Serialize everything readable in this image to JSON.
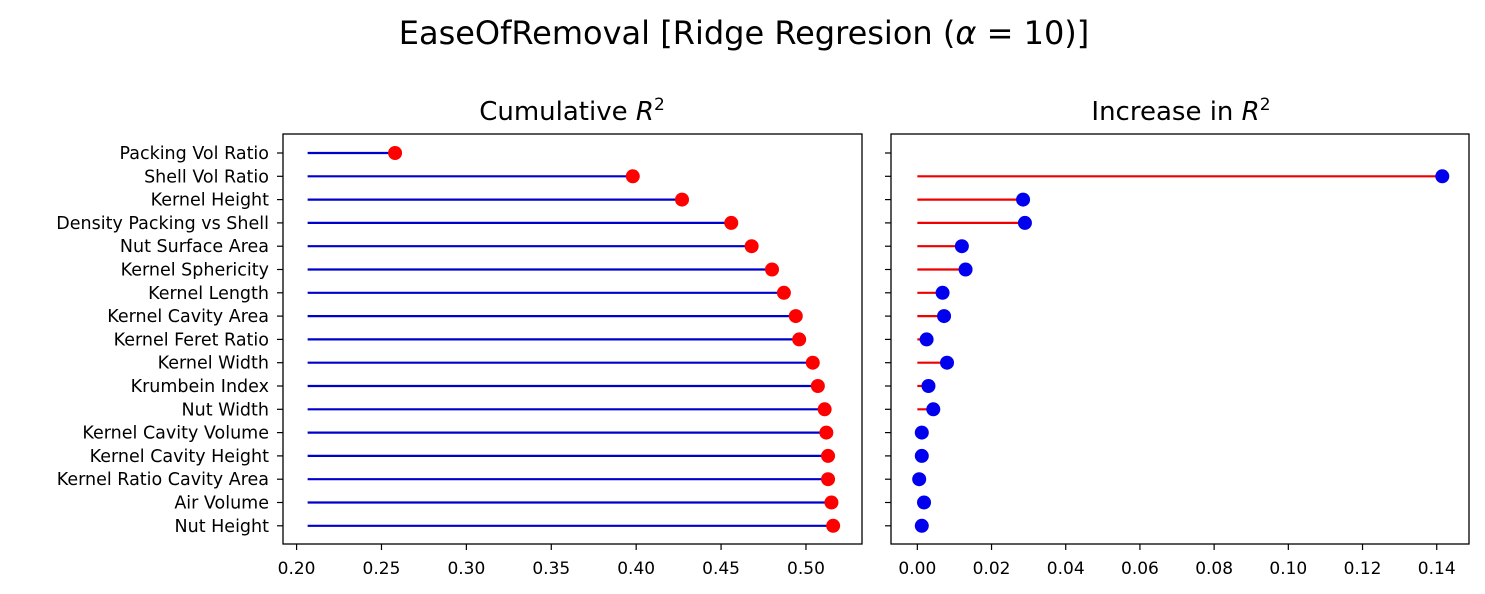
{
  "figure": {
    "title_prefix": "EaseOfRemoval [Ridge Regresion (",
    "title_alpha": "α",
    "title_suffix": " = 10)]"
  },
  "chart_data": [
    {
      "type": "lollipop",
      "title_text": "Cumulative ",
      "title_var": "R",
      "title_sup": "2",
      "categories": [
        "Packing Vol Ratio",
        "Shell Vol Ratio",
        "Kernel Height",
        "Density Packing vs Shell",
        "Nut Surface Area",
        "Kernel Sphericity",
        "Kernel Length",
        "Kernel Cavity Area",
        "Kernel Feret Ratio",
        "Kernel Width",
        "Krumbein Index",
        "Nut Width",
        "Kernel Cavity Volume",
        "Kernel Cavity Height",
        "Kernel Ratio Cavity Area",
        "Air Volume",
        "Nut Height"
      ],
      "baseline": 0.2065,
      "values": [
        0.258,
        0.398,
        0.427,
        0.456,
        0.468,
        0.48,
        0.487,
        0.494,
        0.496,
        0.504,
        0.507,
        0.511,
        0.512,
        0.513,
        0.513,
        0.515,
        0.516
      ],
      "xlim": [
        0.192,
        0.533
      ],
      "xticks": [
        0.2,
        0.25,
        0.3,
        0.35,
        0.4,
        0.45,
        0.5
      ],
      "xtick_labels": [
        "0.20",
        "0.25",
        "0.30",
        "0.35",
        "0.40",
        "0.45",
        "0.50"
      ],
      "stem_color": "#0000cc",
      "marker_color": "#ff0000"
    },
    {
      "type": "lollipop",
      "title_text": "Increase in ",
      "title_var": "R",
      "title_sup": "2",
      "categories": [
        "Packing Vol Ratio",
        "Shell Vol Ratio",
        "Kernel Height",
        "Density Packing vs Shell",
        "Nut Surface Area",
        "Kernel Sphericity",
        "Kernel Length",
        "Kernel Cavity Area",
        "Kernel Feret Ratio",
        "Kernel Width",
        "Krumbein Index",
        "Nut Width",
        "Kernel Cavity Volume",
        "Kernel Cavity Height",
        "Kernel Ratio Cavity Area",
        "Air Volume",
        "Nut Height"
      ],
      "baseline": 0,
      "values": [
        null,
        0.1415,
        0.0285,
        0.029,
        0.012,
        0.013,
        0.0068,
        0.0072,
        0.0025,
        0.008,
        0.003,
        0.0043,
        0.0012,
        0.0012,
        0.0005,
        0.0018,
        0.0012
      ],
      "xlim": [
        -0.0071,
        0.1487
      ],
      "xticks": [
        0.0,
        0.02,
        0.04,
        0.06,
        0.08,
        0.1,
        0.12,
        0.14
      ],
      "xtick_labels": [
        "0.00",
        "0.02",
        "0.04",
        "0.06",
        "0.08",
        "0.10",
        "0.12",
        "0.14"
      ],
      "stem_color": "#ee0000",
      "marker_color": "#0000ee"
    }
  ]
}
